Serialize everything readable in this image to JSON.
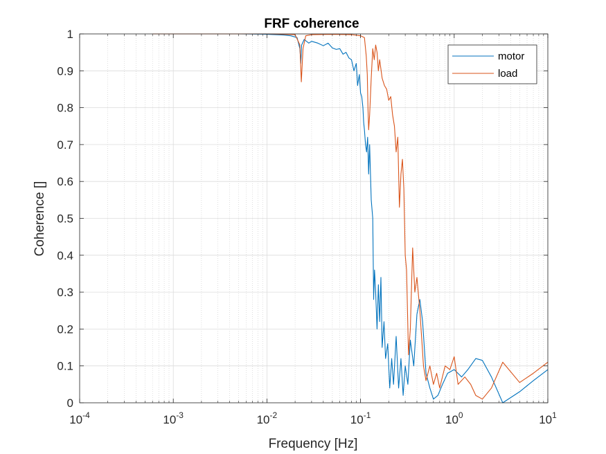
{
  "chart_data": {
    "type": "line",
    "title": "FRF coherence",
    "xlabel": "Frequency [Hz]",
    "ylabel": "Coherence []",
    "xscale": "log",
    "xlim": [
      0.0001,
      10
    ],
    "ylim": [
      0,
      1
    ],
    "xticks": [
      {
        "value": 0.0001,
        "base": "10",
        "exp": "-4"
      },
      {
        "value": 0.001,
        "base": "10",
        "exp": "-3"
      },
      {
        "value": 0.01,
        "base": "10",
        "exp": "-2"
      },
      {
        "value": 0.1,
        "base": "10",
        "exp": "-1"
      },
      {
        "value": 1,
        "base": "10",
        "exp": "0"
      },
      {
        "value": 10,
        "base": "10",
        "exp": "1"
      }
    ],
    "yticks": [
      {
        "value": 0,
        "label": "0"
      },
      {
        "value": 0.1,
        "label": "0.1"
      },
      {
        "value": 0.2,
        "label": "0.2"
      },
      {
        "value": 0.3,
        "label": "0.3"
      },
      {
        "value": 0.4,
        "label": "0.4"
      },
      {
        "value": 0.5,
        "label": "0.5"
      },
      {
        "value": 0.6,
        "label": "0.6"
      },
      {
        "value": 0.7,
        "label": "0.7"
      },
      {
        "value": 0.8,
        "label": "0.8"
      },
      {
        "value": 0.9,
        "label": "0.9"
      },
      {
        "value": 1,
        "label": "1"
      }
    ],
    "grid": true,
    "minor_grid": true,
    "legend_position": "top-right",
    "series": [
      {
        "name": "motor",
        "color": "#0072BD",
        "points": [
          [
            0.0006,
            1.0
          ],
          [
            0.001,
            1.0
          ],
          [
            0.005,
            1.0
          ],
          [
            0.01,
            0.999
          ],
          [
            0.015,
            0.997
          ],
          [
            0.018,
            0.995
          ],
          [
            0.021,
            0.99
          ],
          [
            0.0225,
            0.96
          ],
          [
            0.023,
            0.92
          ],
          [
            0.0235,
            0.97
          ],
          [
            0.025,
            0.985
          ],
          [
            0.028,
            0.975
          ],
          [
            0.03,
            0.98
          ],
          [
            0.035,
            0.975
          ],
          [
            0.04,
            0.968
          ],
          [
            0.045,
            0.975
          ],
          [
            0.05,
            0.962
          ],
          [
            0.055,
            0.958
          ],
          [
            0.06,
            0.96
          ],
          [
            0.065,
            0.945
          ],
          [
            0.07,
            0.95
          ],
          [
            0.075,
            0.935
          ],
          [
            0.08,
            0.93
          ],
          [
            0.085,
            0.9
          ],
          [
            0.09,
            0.92
          ],
          [
            0.093,
            0.86
          ],
          [
            0.097,
            0.89
          ],
          [
            0.1,
            0.84
          ],
          [
            0.103,
            0.83
          ],
          [
            0.106,
            0.8
          ],
          [
            0.108,
            0.76
          ],
          [
            0.11,
            0.74
          ],
          [
            0.113,
            0.7
          ],
          [
            0.116,
            0.68
          ],
          [
            0.119,
            0.72
          ],
          [
            0.122,
            0.62
          ],
          [
            0.125,
            0.7
          ],
          [
            0.13,
            0.55
          ],
          [
            0.135,
            0.5
          ],
          [
            0.138,
            0.28
          ],
          [
            0.141,
            0.36
          ],
          [
            0.145,
            0.3
          ],
          [
            0.15,
            0.2
          ],
          [
            0.155,
            0.32
          ],
          [
            0.16,
            0.22
          ],
          [
            0.165,
            0.34
          ],
          [
            0.17,
            0.15
          ],
          [
            0.178,
            0.22
          ],
          [
            0.185,
            0.12
          ],
          [
            0.195,
            0.16
          ],
          [
            0.205,
            0.04
          ],
          [
            0.215,
            0.12
          ],
          [
            0.225,
            0.05
          ],
          [
            0.24,
            0.18
          ],
          [
            0.255,
            0.04
          ],
          [
            0.27,
            0.12
          ],
          [
            0.285,
            0.02
          ],
          [
            0.3,
            0.1
          ],
          [
            0.32,
            0.05
          ],
          [
            0.34,
            0.17
          ],
          [
            0.37,
            0.1
          ],
          [
            0.4,
            0.24
          ],
          [
            0.43,
            0.28
          ],
          [
            0.46,
            0.22
          ],
          [
            0.5,
            0.08
          ],
          [
            0.55,
            0.04
          ],
          [
            0.6,
            0.01
          ],
          [
            0.67,
            0.02
          ],
          [
            0.75,
            0.05
          ],
          [
            0.85,
            0.08
          ],
          [
            1.0,
            0.09
          ],
          [
            1.2,
            0.07
          ],
          [
            1.4,
            0.09
          ],
          [
            1.7,
            0.12
          ],
          [
            2.0,
            0.115
          ],
          [
            2.5,
            0.07
          ],
          [
            3.3,
            0.0
          ],
          [
            5.0,
            0.03
          ],
          [
            7.0,
            0.06
          ],
          [
            10.0,
            0.09
          ]
        ]
      },
      {
        "name": "load",
        "color": "#D95319",
        "points": [
          [
            0.0006,
            1.0
          ],
          [
            0.001,
            1.0
          ],
          [
            0.005,
            1.0
          ],
          [
            0.01,
            1.0
          ],
          [
            0.015,
            0.999
          ],
          [
            0.02,
            0.998
          ],
          [
            0.0225,
            0.97
          ],
          [
            0.0233,
            0.87
          ],
          [
            0.0243,
            0.96
          ],
          [
            0.026,
            0.995
          ],
          [
            0.03,
            0.998
          ],
          [
            0.05,
            0.999
          ],
          [
            0.08,
            0.998
          ],
          [
            0.1,
            0.995
          ],
          [
            0.11,
            0.99
          ],
          [
            0.115,
            0.94
          ],
          [
            0.118,
            0.89
          ],
          [
            0.12,
            0.8
          ],
          [
            0.122,
            0.74
          ],
          [
            0.125,
            0.78
          ],
          [
            0.13,
            0.88
          ],
          [
            0.135,
            0.96
          ],
          [
            0.14,
            0.93
          ],
          [
            0.145,
            0.97
          ],
          [
            0.15,
            0.95
          ],
          [
            0.155,
            0.9
          ],
          [
            0.16,
            0.93
          ],
          [
            0.17,
            0.88
          ],
          [
            0.18,
            0.86
          ],
          [
            0.19,
            0.85
          ],
          [
            0.2,
            0.82
          ],
          [
            0.21,
            0.83
          ],
          [
            0.22,
            0.78
          ],
          [
            0.23,
            0.75
          ],
          [
            0.24,
            0.68
          ],
          [
            0.25,
            0.72
          ],
          [
            0.26,
            0.53
          ],
          [
            0.27,
            0.62
          ],
          [
            0.28,
            0.66
          ],
          [
            0.29,
            0.58
          ],
          [
            0.3,
            0.4
          ],
          [
            0.31,
            0.36
          ],
          [
            0.325,
            0.13
          ],
          [
            0.34,
            0.2
          ],
          [
            0.36,
            0.42
          ],
          [
            0.38,
            0.3
          ],
          [
            0.4,
            0.34
          ],
          [
            0.43,
            0.25
          ],
          [
            0.47,
            0.1
          ],
          [
            0.5,
            0.06
          ],
          [
            0.55,
            0.1
          ],
          [
            0.6,
            0.05
          ],
          [
            0.65,
            0.08
          ],
          [
            0.7,
            0.04
          ],
          [
            0.8,
            0.1
          ],
          [
            0.9,
            0.09
          ],
          [
            1.0,
            0.125
          ],
          [
            1.1,
            0.05
          ],
          [
            1.3,
            0.07
          ],
          [
            1.5,
            0.05
          ],
          [
            1.7,
            0.02
          ],
          [
            2.0,
            0.01
          ],
          [
            2.5,
            0.04
          ],
          [
            3.3,
            0.11
          ],
          [
            5.0,
            0.055
          ],
          [
            7.0,
            0.08
          ],
          [
            10.0,
            0.11
          ]
        ]
      }
    ]
  }
}
